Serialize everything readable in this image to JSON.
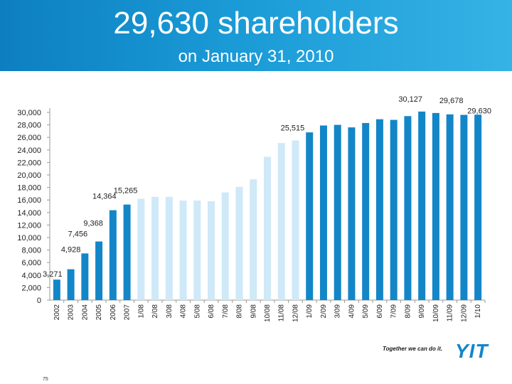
{
  "slide": {
    "title": "29,630 shareholders",
    "subtitle": "on January 31, 2010",
    "tagline": "Together we can do it.",
    "logo_text": "YIT",
    "page_number": "75"
  },
  "colors": {
    "header_left": "#0d7fc0",
    "header_right": "#35b3e6",
    "bar_dark": "#1386c8",
    "bar_light": "#cfe9f8",
    "logo": "#1386c8"
  },
  "chart_data": {
    "type": "bar",
    "title": "",
    "xlabel": "",
    "ylabel": "",
    "ylim": [
      0,
      30000
    ],
    "yticks": [
      "0",
      "2,000",
      "4,000",
      "6,000",
      "8,000",
      "10,000",
      "12,000",
      "14,000",
      "16,000",
      "18,000",
      "20,000",
      "22,000",
      "24,000",
      "26,000",
      "28,000",
      "30,000"
    ],
    "grid": false,
    "legend": "none",
    "categories": [
      "2002",
      "2003",
      "2004",
      "2005",
      "2006",
      "2007",
      "1/08",
      "2/08",
      "3/08",
      "4/08",
      "5/08",
      "6/08",
      "7/08",
      "8/08",
      "9/08",
      "10/08",
      "11/08",
      "12/08",
      "1/09",
      "2/09",
      "3/09",
      "4/09",
      "5/09",
      "6/09",
      "7/09",
      "8/09",
      "9/09",
      "10/09",
      "11/09",
      "12/09",
      "1/10"
    ],
    "values": [
      3271,
      4928,
      7456,
      9368,
      14364,
      15265,
      16200,
      16500,
      16500,
      15900,
      15900,
      15800,
      17200,
      18100,
      19300,
      22900,
      25100,
      25515,
      26800,
      27900,
      28000,
      27600,
      28300,
      28900,
      28800,
      29400,
      30127,
      29900,
      29678,
      29600,
      29630
    ],
    "styles": [
      "dark",
      "dark",
      "dark",
      "dark",
      "dark",
      "dark",
      "light",
      "light",
      "light",
      "light",
      "light",
      "light",
      "light",
      "light",
      "light",
      "light",
      "light",
      "light",
      "dark",
      "dark",
      "dark",
      "dark",
      "dark",
      "dark",
      "dark",
      "dark",
      "dark",
      "dark",
      "dark",
      "dark",
      "dark"
    ],
    "data_labels": [
      {
        "index": 0,
        "text": "3,271"
      },
      {
        "index": 1,
        "text": "4,928"
      },
      {
        "index": 2,
        "text": "7,456"
      },
      {
        "index": 3,
        "text": "9,368"
      },
      {
        "index": 4,
        "text": "14,364"
      },
      {
        "index": 5,
        "text": "15,265"
      },
      {
        "index": 17,
        "text": "25,515"
      },
      {
        "index": 26,
        "text": "30,127"
      },
      {
        "index": 28,
        "text": "29,678"
      },
      {
        "index": 30,
        "text": "29,630"
      }
    ]
  }
}
